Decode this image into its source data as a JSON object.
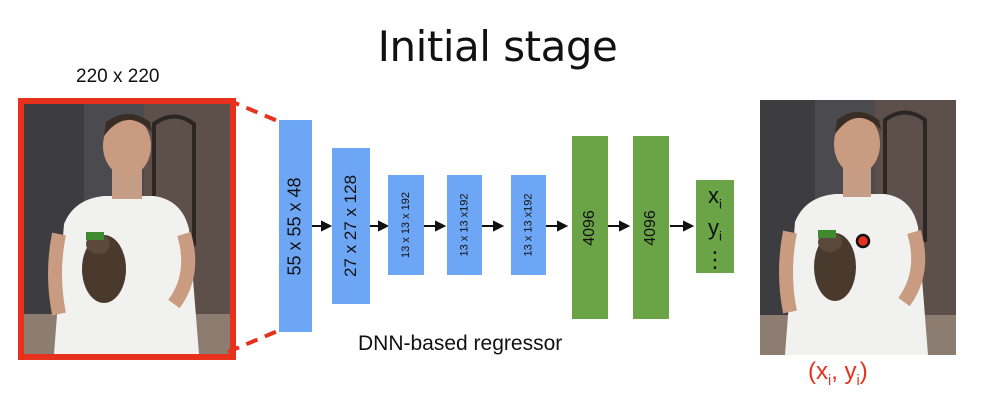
{
  "title": "Initial stage",
  "input": {
    "size_label": "220 x 220"
  },
  "layers": [
    {
      "label": "55 x 55 x 48",
      "kind": "conv"
    },
    {
      "label": "27 x 27 x 128",
      "kind": "conv"
    },
    {
      "label": "13 x 13 x 192",
      "kind": "conv"
    },
    {
      "label": "13 x 13 x192",
      "kind": "conv"
    },
    {
      "label": "13 x 13 x192",
      "kind": "conv"
    },
    {
      "label": "4096",
      "kind": "fc"
    },
    {
      "label": "4096",
      "kind": "fc"
    }
  ],
  "output_vector": {
    "x": "x",
    "y": "y",
    "sub": "i",
    "ellipsis": "⋮"
  },
  "regressor_caption": "DNN-based regressor",
  "output": {
    "coords_open": "(x",
    "coords_sep": ", y",
    "coords_close": ")",
    "sub": "i"
  },
  "colors": {
    "conv": "#6ea6f6",
    "fc": "#6aa446",
    "accent": "#e8311c"
  }
}
